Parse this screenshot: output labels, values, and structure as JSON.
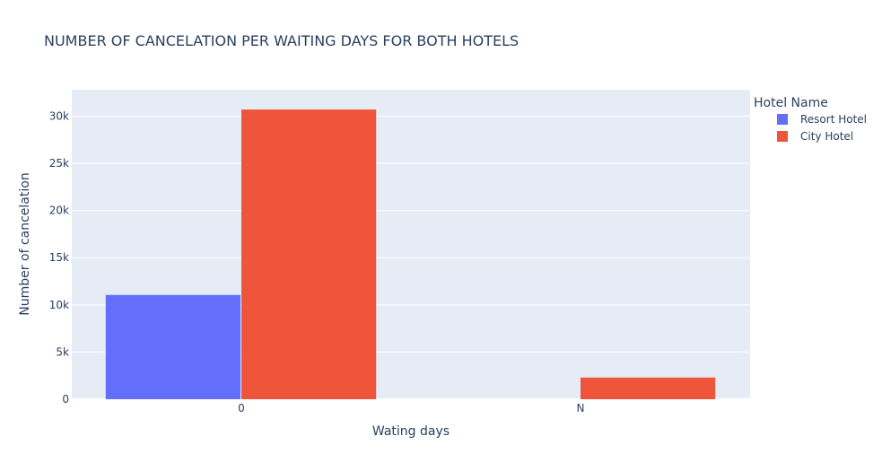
{
  "chart_data": {
    "type": "bar",
    "title": "NUMBER OF CANCELATION PER WAITING DAYS FOR BOTH HOTELS",
    "xlabel": "Wating days",
    "ylabel": "Number of cancelation",
    "categories": [
      "0",
      "N"
    ],
    "series": [
      {
        "name": "Resort Hotel",
        "values": [
          11050,
          0
        ],
        "color": "#636efa"
      },
      {
        "name": "City Hotel",
        "values": [
          30700,
          2300
        ],
        "color": "#ef553b"
      }
    ],
    "ylim": [
      0,
      32800
    ],
    "yticks": [
      {
        "value": 0,
        "label": "0"
      },
      {
        "value": 5000,
        "label": "5k"
      },
      {
        "value": 10000,
        "label": "10k"
      },
      {
        "value": 15000,
        "label": "15k"
      },
      {
        "value": 20000,
        "label": "20k"
      },
      {
        "value": 25000,
        "label": "25k"
      },
      {
        "value": 30000,
        "label": "30k"
      }
    ],
    "grid": true,
    "legend": {
      "title": "Hotel Name",
      "placement": "top-right"
    },
    "plot_bg": "#e5ecf6",
    "text_color": "#2a3f5f"
  }
}
